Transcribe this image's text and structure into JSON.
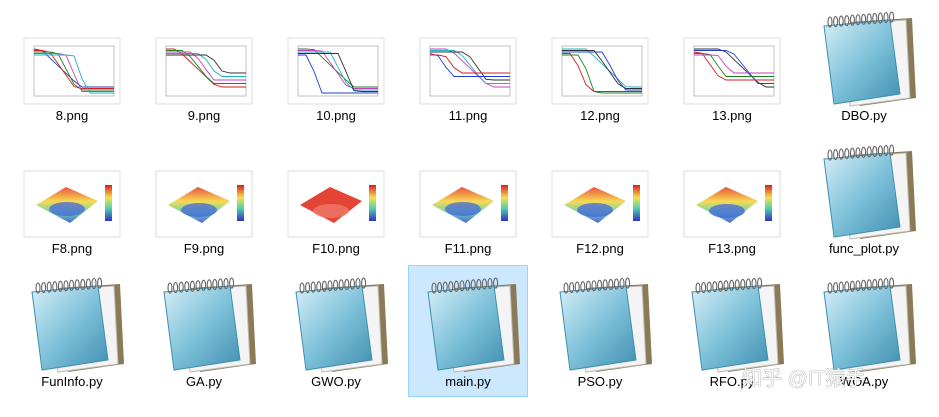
{
  "files": [
    "8.png",
    "9.png",
    "10.png",
    "11.png",
    "12.png",
    "13.png",
    "DBO.py",
    "F8.png",
    "F9.png",
    "F10.png",
    "F11.png",
    "F12.png",
    "F13.png",
    "func_plot.py",
    "FunInfo.py",
    "GA.py",
    "GWO.py",
    "main.py",
    "PSO.py",
    "RFO.py",
    "WOA.py"
  ],
  "watermark": "知乎 @IT猿手"
}
